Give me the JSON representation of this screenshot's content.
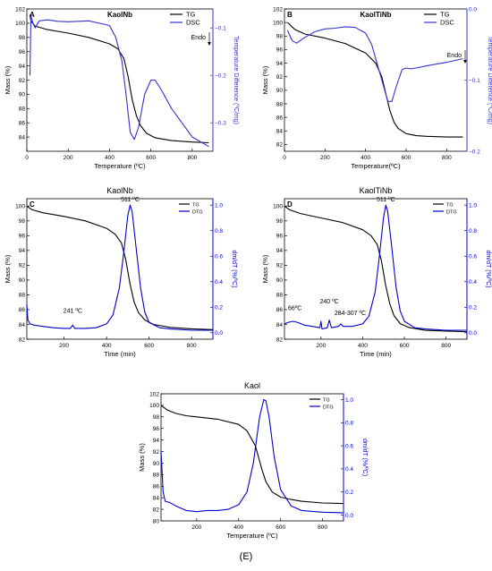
{
  "figure": {
    "caption": "(E)"
  },
  "chart_data": [
    {
      "type": "line",
      "panel_letter": "A",
      "title": "KaolNb",
      "xlabel": "Temperature (ºC)",
      "ylabel": "Mass (%)",
      "y2label": "Temperature Difference (ºC/mg)",
      "xlim": [
        0,
        900
      ],
      "ylim": [
        82,
        102
      ],
      "y2lim": [
        -0.36,
        -0.06
      ],
      "xticks": [
        0,
        200,
        400,
        600,
        800
      ],
      "yticks": [
        84,
        86,
        88,
        90,
        92,
        94,
        96,
        98,
        100,
        102
      ],
      "y2ticks": [
        -0.3,
        -0.2,
        -0.1
      ],
      "annotations": [
        "Endo"
      ],
      "legend_position": "top-right",
      "grid": false,
      "series": [
        {
          "name": "TG",
          "axis": "left",
          "color": "#000000",
          "x": [
            15,
            20,
            40,
            100,
            200,
            300,
            400,
            440,
            470,
            490,
            510,
            530,
            550,
            580,
            620,
            700,
            800,
            880
          ],
          "y": [
            101.2,
            100.3,
            99.6,
            99.1,
            98.6,
            98.0,
            97.1,
            96.4,
            95.0,
            92.5,
            89.2,
            87.0,
            85.6,
            84.5,
            83.9,
            83.5,
            83.3,
            83.2
          ]
        },
        {
          "name": "DSC",
          "axis": "right",
          "color": "#3333cc",
          "x": [
            15,
            20,
            30,
            40,
            60,
            100,
            150,
            200,
            300,
            350,
            400,
            430,
            460,
            480,
            500,
            520,
            540,
            570,
            600,
            620,
            650,
            700,
            800,
            880
          ],
          "y": [
            -0.2,
            -0.075,
            -0.09,
            -0.1,
            -0.085,
            -0.083,
            -0.086,
            -0.087,
            -0.085,
            -0.09,
            -0.095,
            -0.12,
            -0.17,
            -0.24,
            -0.32,
            -0.335,
            -0.31,
            -0.24,
            -0.21,
            -0.21,
            -0.23,
            -0.27,
            -0.33,
            -0.35
          ]
        }
      ]
    },
    {
      "type": "line",
      "panel_letter": "B",
      "title": "KaolTiNb",
      "xlabel": "Temperature(ºC)",
      "ylabel": "Mass (%)",
      "y2label": "Temperature Difference (ºC/mg)",
      "xlim": [
        0,
        900
      ],
      "ylim": [
        81,
        102
      ],
      "y2lim": [
        -0.2,
        0.0
      ],
      "xticks": [
        0,
        200,
        400,
        600,
        800
      ],
      "yticks": [
        82,
        84,
        86,
        88,
        90,
        92,
        94,
        96,
        98,
        100,
        102
      ],
      "y2ticks": [
        -0.2,
        -0.1,
        0.0
      ],
      "annotations": [
        "Endo"
      ],
      "legend_position": "top-right",
      "grid": false,
      "series": [
        {
          "name": "TG",
          "axis": "left",
          "color": "#000000",
          "x": [
            15,
            50,
            100,
            200,
            300,
            400,
            450,
            480,
            500,
            520,
            540,
            560,
            600,
            650,
            700,
            800,
            880
          ],
          "y": [
            100.0,
            99.0,
            98.3,
            97.7,
            96.9,
            95.5,
            94.0,
            92.0,
            89.5,
            87.0,
            85.3,
            84.4,
            83.6,
            83.3,
            83.2,
            83.1,
            83.1
          ],
          "y_note": ""
        },
        {
          "name": "DSC",
          "axis": "right",
          "color": "#3333cc",
          "x": [
            15,
            30,
            40,
            60,
            100,
            150,
            200,
            250,
            300,
            350,
            400,
            430,
            460,
            490,
            510,
            530,
            550,
            580,
            600,
            620,
            650,
            700,
            800,
            880
          ],
          "y": [
            -0.03,
            -0.04,
            -0.045,
            -0.048,
            -0.04,
            -0.032,
            -0.028,
            -0.027,
            -0.025,
            -0.026,
            -0.034,
            -0.05,
            -0.08,
            -0.11,
            -0.13,
            -0.13,
            -0.11,
            -0.085,
            -0.083,
            -0.084,
            -0.083,
            -0.08,
            -0.075,
            -0.07
          ]
        }
      ]
    },
    {
      "type": "line",
      "panel_letter": "C",
      "title": "KaolNb",
      "xlabel": "Time (min)",
      "ylabel": "Mass (%)",
      "y2label": "dm/dT (%/ºC)",
      "xlim": [
        25,
        900
      ],
      "ylim": [
        82,
        101
      ],
      "y2lim": [
        -0.05,
        1.05
      ],
      "xticks": [
        200,
        400,
        600,
        800
      ],
      "yticks": [
        82,
        84,
        86,
        88,
        90,
        92,
        94,
        96,
        98,
        100
      ],
      "y2ticks": [
        0.0,
        0.2,
        0.4,
        0.6,
        0.8,
        1.0
      ],
      "annotations": [
        "511 ºC",
        "241 ºC"
      ],
      "legend_position": "top-right",
      "grid": false,
      "series": [
        {
          "name": "TG",
          "axis": "left",
          "color": "#000000",
          "x": [
            25,
            50,
            100,
            200,
            300,
            400,
            440,
            470,
            490,
            510,
            530,
            550,
            580,
            620,
            700,
            800,
            900
          ],
          "y": [
            100.0,
            99.5,
            99.1,
            98.6,
            98.0,
            97.0,
            96.2,
            95.0,
            92.8,
            89.5,
            87.0,
            85.6,
            84.6,
            84.0,
            83.6,
            83.4,
            83.3
          ]
        },
        {
          "name": "DTG",
          "axis": "right",
          "color": "#0000cc",
          "x": [
            25,
            30,
            40,
            60,
            100,
            150,
            200,
            230,
            241,
            250,
            300,
            350,
            400,
            430,
            460,
            480,
            500,
            511,
            520,
            540,
            560,
            580,
            600,
            650,
            700,
            800,
            900
          ],
          "y": [
            0.22,
            0.1,
            0.07,
            0.06,
            0.05,
            0.04,
            0.035,
            0.035,
            0.06,
            0.035,
            0.035,
            0.04,
            0.07,
            0.14,
            0.35,
            0.62,
            0.92,
            1.0,
            0.95,
            0.65,
            0.35,
            0.16,
            0.08,
            0.04,
            0.03,
            0.02,
            0.02
          ]
        }
      ]
    },
    {
      "type": "line",
      "panel_letter": "D",
      "title": "KaolTiNb",
      "xlabel": "Time (min)",
      "ylabel": "Mass (%)",
      "y2label": "dm/dT (%/ºC)",
      "xlim": [
        25,
        900
      ],
      "ylim": [
        82,
        101
      ],
      "y2lim": [
        -0.05,
        1.05
      ],
      "xticks": [
        200,
        400,
        600,
        800
      ],
      "yticks": [
        82,
        84,
        86,
        88,
        90,
        92,
        94,
        96,
        98,
        100
      ],
      "y2ticks": [
        0.0,
        0.2,
        0.4,
        0.6,
        0.8,
        1.0
      ],
      "annotations": [
        "511 ºC",
        "66ºC",
        "240 ºC",
        "284-307 ºC"
      ],
      "legend_position": "top-right",
      "grid": false,
      "series": [
        {
          "name": "TG",
          "axis": "left",
          "color": "#000000",
          "x": [
            25,
            50,
            100,
            200,
            300,
            400,
            440,
            470,
            490,
            510,
            530,
            550,
            580,
            620,
            700,
            800,
            900
          ],
          "y": [
            100.0,
            99.5,
            99.0,
            98.4,
            97.8,
            96.8,
            96.0,
            94.8,
            92.6,
            89.3,
            86.8,
            85.2,
            84.1,
            83.6,
            83.2,
            83.1,
            83.0
          ]
        },
        {
          "name": "DTG",
          "axis": "right",
          "color": "#0000cc",
          "x": [
            25,
            40,
            66,
            90,
            120,
            160,
            195,
            200,
            205,
            230,
            240,
            250,
            284,
            295,
            307,
            350,
            400,
            430,
            460,
            480,
            500,
            511,
            520,
            540,
            560,
            580,
            600,
            650,
            700,
            800,
            900
          ],
          "y": [
            0.07,
            0.08,
            0.09,
            0.08,
            0.06,
            0.05,
            0.04,
            0.09,
            0.03,
            0.04,
            0.1,
            0.04,
            0.05,
            0.07,
            0.05,
            0.05,
            0.07,
            0.13,
            0.32,
            0.6,
            0.9,
            1.0,
            0.95,
            0.66,
            0.36,
            0.17,
            0.09,
            0.04,
            0.03,
            0.02,
            0.02
          ]
        }
      ]
    },
    {
      "type": "line",
      "panel_letter": "",
      "title": "Kaol",
      "xlabel": "Temperature (ºC)",
      "ylabel": "Mass (%)",
      "y2label": "dm/dT (%/ºC)",
      "xlim": [
        30,
        900
      ],
      "ylim": [
        80,
        102
      ],
      "y2lim": [
        -0.05,
        1.05
      ],
      "xticks": [
        200,
        400,
        600,
        800
      ],
      "yticks": [
        80,
        82,
        84,
        86,
        88,
        90,
        92,
        94,
        96,
        98,
        100,
        102
      ],
      "y2ticks": [
        0.0,
        0.2,
        0.4,
        0.6,
        0.8,
        1.0
      ],
      "annotations": [],
      "legend_position": "top-right",
      "grid": false,
      "series": [
        {
          "name": "TG",
          "axis": "left",
          "color": "#000000",
          "x": [
            30,
            60,
            100,
            150,
            200,
            300,
            400,
            440,
            480,
            510,
            530,
            560,
            600,
            650,
            700,
            800,
            900
          ],
          "y": [
            100.0,
            99.2,
            98.6,
            98.2,
            98.0,
            97.6,
            96.7,
            95.6,
            93.0,
            89.0,
            86.8,
            85.0,
            84.1,
            83.7,
            83.4,
            83.1,
            83.0
          ]
        },
        {
          "name": "DTG",
          "axis": "right",
          "color": "#0000cc",
          "x": [
            30,
            40,
            50,
            70,
            100,
            150,
            200,
            250,
            300,
            350,
            400,
            440,
            470,
            500,
            520,
            530,
            545,
            570,
            600,
            650,
            700,
            800,
            900
          ],
          "y": [
            0.55,
            0.2,
            0.12,
            0.11,
            0.08,
            0.04,
            0.03,
            0.04,
            0.04,
            0.05,
            0.09,
            0.2,
            0.45,
            0.85,
            1.0,
            0.99,
            0.85,
            0.5,
            0.22,
            0.08,
            0.04,
            0.025,
            0.02
          ]
        }
      ]
    }
  ]
}
